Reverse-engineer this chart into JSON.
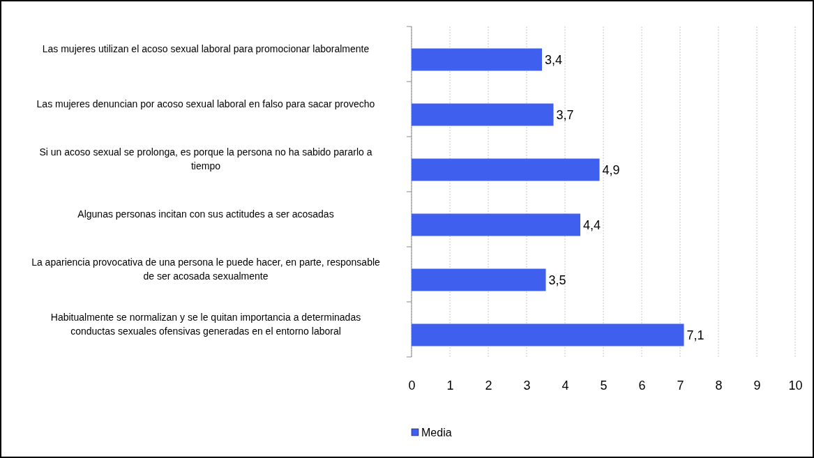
{
  "chart_data": {
    "type": "bar",
    "orientation": "horizontal",
    "categories": [
      "Las mujeres utilizan el acoso sexual laboral para promocionar laboralmente",
      "Las mujeres denuncian por acoso sexual laboral en falso para sacar provecho",
      "Si un acoso sexual se prolonga, es porque la persona no ha sabido pararlo a tiempo",
      "Algunas personas incitan con sus actitudes a ser acosadas",
      "La apariencia provocativa de una persona le puede hacer, en parte, responsable de ser acosada sexualmente",
      "Habitualmente se normalizan y se le quitan importancia a determinadas conductas sexuales ofensivas generadas en el entorno laboral"
    ],
    "series": [
      {
        "name": "Media",
        "color": "#3f5fee",
        "values": [
          3.4,
          3.7,
          4.9,
          4.4,
          3.5,
          7.1
        ],
        "value_labels": [
          "3,4",
          "3,7",
          "4,9",
          "4,4",
          "3,5",
          "7,1"
        ]
      }
    ],
    "xlim": [
      0,
      10
    ],
    "xticks": [
      0,
      1,
      2,
      3,
      4,
      5,
      6,
      7,
      8,
      9,
      10
    ],
    "grid": "x",
    "legend": "bottom"
  }
}
